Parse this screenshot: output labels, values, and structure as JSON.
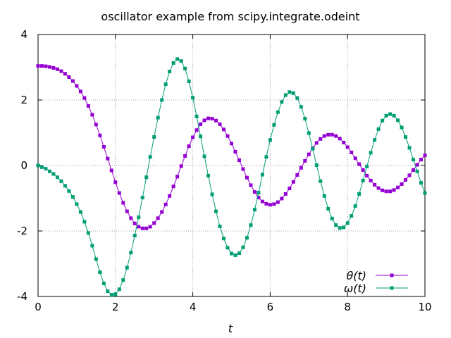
{
  "chart_data": {
    "type": "line",
    "title": "oscillator example from scipy.integrate.odeint",
    "xlabel": "t",
    "ylabel": "",
    "xlim": [
      0,
      10
    ],
    "ylim": [
      -4,
      4
    ],
    "xticks": [
      "0",
      "2",
      "4",
      "6",
      "8",
      "10"
    ],
    "yticks": [
      "4",
      "2",
      "0",
      "-2",
      "-4"
    ],
    "grid": true,
    "legend_position": "bottom-right",
    "marker": "square",
    "series": [
      {
        "name": "θ(t)",
        "color": "#9400d3",
        "x": [
          0,
          0.1,
          0.2,
          0.3,
          0.4,
          0.5,
          0.6,
          0.7,
          0.8,
          0.9,
          1.0,
          1.1,
          1.2,
          1.3,
          1.4,
          1.5,
          1.6,
          1.7,
          1.8,
          1.9,
          2.0,
          2.1,
          2.2,
          2.3,
          2.4,
          2.5,
          2.6,
          2.7,
          2.8,
          2.9,
          3.0,
          3.1,
          3.2,
          3.3,
          3.4,
          3.5,
          3.6,
          3.7,
          3.8,
          3.9,
          4.0,
          4.1,
          4.2,
          4.3,
          4.4,
          4.5,
          4.6,
          4.7,
          4.8,
          4.9,
          5.0,
          5.1,
          5.2,
          5.3,
          5.4,
          5.5,
          5.6,
          5.7,
          5.8,
          5.9,
          6.0,
          6.1,
          6.2,
          6.3,
          6.4,
          6.5,
          6.6,
          6.7,
          6.8,
          6.9,
          7.0,
          7.1,
          7.2,
          7.3,
          7.4,
          7.5,
          7.6,
          7.7,
          7.8,
          7.9,
          8.0,
          8.1,
          8.2,
          8.3,
          8.4,
          8.5,
          8.6,
          8.7,
          8.8,
          8.9,
          9.0,
          9.1,
          9.2,
          9.3,
          9.4,
          9.5,
          9.6,
          9.7,
          9.8,
          9.9,
          10.0
        ],
        "values": [
          3.04,
          3.04,
          3.03,
          3.01,
          2.98,
          2.94,
          2.88,
          2.8,
          2.7,
          2.58,
          2.43,
          2.26,
          2.06,
          1.82,
          1.55,
          1.25,
          0.92,
          0.57,
          0.21,
          -0.15,
          -0.51,
          -0.84,
          -1.14,
          -1.4,
          -1.61,
          -1.77,
          -1.87,
          -1.92,
          -1.92,
          -1.87,
          -1.76,
          -1.61,
          -1.42,
          -1.19,
          -0.93,
          -0.64,
          -0.34,
          -0.02,
          0.29,
          0.59,
          0.86,
          1.08,
          1.26,
          1.38,
          1.44,
          1.43,
          1.37,
          1.26,
          1.1,
          0.9,
          0.67,
          0.42,
          0.16,
          -0.11,
          -0.37,
          -0.6,
          -0.81,
          -0.98,
          -1.1,
          -1.17,
          -1.2,
          -1.18,
          -1.12,
          -1.01,
          -0.87,
          -0.7,
          -0.5,
          -0.29,
          -0.07,
          0.14,
          0.34,
          0.53,
          0.69,
          0.81,
          0.9,
          0.94,
          0.94,
          0.9,
          0.82,
          0.7,
          0.56,
          0.4,
          0.22,
          0.04,
          -0.14,
          -0.31,
          -0.46,
          -0.59,
          -0.69,
          -0.76,
          -0.79,
          -0.79,
          -0.75,
          -0.67,
          -0.57,
          -0.44,
          -0.3,
          -0.14,
          0.02,
          0.18,
          0.31
        ]
      },
      {
        "name": "ω(t)",
        "color": "#009e73",
        "x": [
          0,
          0.1,
          0.2,
          0.3,
          0.4,
          0.5,
          0.6,
          0.7,
          0.8,
          0.9,
          1.0,
          1.1,
          1.2,
          1.3,
          1.4,
          1.5,
          1.6,
          1.7,
          1.8,
          1.9,
          2.0,
          2.1,
          2.2,
          2.3,
          2.4,
          2.5,
          2.6,
          2.7,
          2.8,
          2.9,
          3.0,
          3.1,
          3.2,
          3.3,
          3.4,
          3.5,
          3.6,
          3.7,
          3.8,
          3.9,
          4.0,
          4.1,
          4.2,
          4.3,
          4.4,
          4.5,
          4.6,
          4.7,
          4.8,
          4.9,
          5.0,
          5.1,
          5.2,
          5.3,
          5.4,
          5.5,
          5.6,
          5.7,
          5.8,
          5.9,
          6.0,
          6.1,
          6.2,
          6.3,
          6.4,
          6.5,
          6.6,
          6.7,
          6.8,
          6.9,
          7.0,
          7.1,
          7.2,
          7.3,
          7.4,
          7.5,
          7.6,
          7.7,
          7.8,
          7.9,
          8.0,
          8.1,
          8.2,
          8.3,
          8.4,
          8.5,
          8.6,
          8.7,
          8.8,
          8.9,
          9.0,
          9.1,
          9.2,
          9.3,
          9.4,
          9.5,
          9.6,
          9.7,
          9.8,
          9.9,
          10.0
        ],
        "values": [
          0.0,
          -0.05,
          -0.1,
          -0.18,
          -0.26,
          -0.36,
          -0.48,
          -0.62,
          -0.78,
          -0.96,
          -1.18,
          -1.42,
          -1.72,
          -2.06,
          -2.45,
          -2.86,
          -3.26,
          -3.6,
          -3.84,
          -3.95,
          -3.93,
          -3.78,
          -3.5,
          -3.12,
          -2.66,
          -2.14,
          -1.58,
          -0.98,
          -0.36,
          0.26,
          0.87,
          1.46,
          2.0,
          2.48,
          2.87,
          3.13,
          3.25,
          3.19,
          2.96,
          2.57,
          2.07,
          1.5,
          0.89,
          0.28,
          -0.31,
          -0.88,
          -1.4,
          -1.86,
          -2.23,
          -2.51,
          -2.69,
          -2.74,
          -2.68,
          -2.5,
          -2.21,
          -1.82,
          -1.35,
          -0.83,
          -0.28,
          0.26,
          0.78,
          1.24,
          1.63,
          1.94,
          2.15,
          2.24,
          2.21,
          2.06,
          1.79,
          1.43,
          0.99,
          0.51,
          0.01,
          -0.48,
          -0.93,
          -1.32,
          -1.62,
          -1.82,
          -1.91,
          -1.89,
          -1.76,
          -1.54,
          -1.24,
          -0.87,
          -0.46,
          -0.03,
          0.39,
          0.78,
          1.11,
          1.37,
          1.52,
          1.57,
          1.52,
          1.38,
          1.16,
          0.87,
          0.54,
          0.18,
          -0.18,
          -0.53,
          -0.84
        ]
      }
    ]
  }
}
